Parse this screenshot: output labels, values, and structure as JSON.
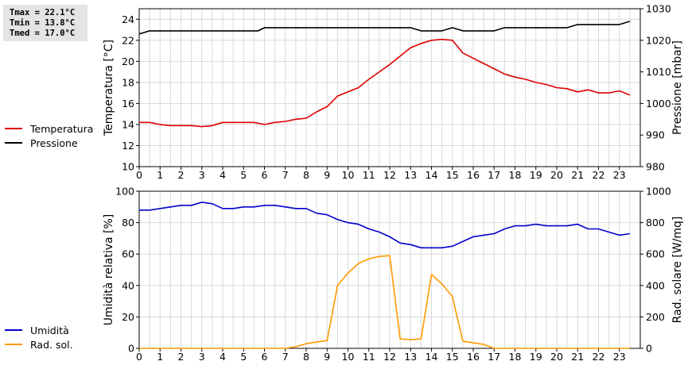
{
  "stats": {
    "tmax": "Tmax = 22.1°C",
    "tmin": "Tmin = 13.8°C",
    "tmed": "Tmed = 17.0°C"
  },
  "legend_top": [
    {
      "label": "Temperatura",
      "color": "#dd0000"
    },
    {
      "label": "Pressione",
      "color": "#000000"
    }
  ],
  "legend_bottom": [
    {
      "label": "Umidità",
      "color": "#0000cc"
    },
    {
      "label": "Rad. sol.",
      "color": "#ff9900"
    }
  ],
  "chart_data": [
    {
      "type": "line",
      "xlim": [
        0,
        24
      ],
      "xticks": [
        0,
        1,
        2,
        3,
        4,
        5,
        6,
        7,
        8,
        9,
        10,
        11,
        12,
        13,
        14,
        15,
        16,
        17,
        18,
        19,
        20,
        21,
        22,
        23
      ],
      "ylabel": "Temperatura [°C]",
      "ylim": [
        10,
        25
      ],
      "yticks": [
        10,
        12,
        14,
        16,
        18,
        20,
        22,
        24
      ],
      "y2label": "Pressione [mbar]",
      "y2lim": [
        980,
        1030
      ],
      "y2ticks": [
        980,
        990,
        1000,
        1010,
        1020,
        1030
      ],
      "grid": true,
      "series": [
        {
          "name": "Temperatura",
          "axis": "left",
          "color": "#dd0000",
          "x": [
            0,
            0.5,
            1,
            1.5,
            2,
            2.5,
            3,
            3.5,
            4,
            4.5,
            5,
            5.5,
            6,
            6.5,
            7,
            7.5,
            8,
            8.5,
            9,
            9.5,
            10,
            10.5,
            11,
            11.5,
            12,
            12.5,
            13,
            13.5,
            14,
            14.5,
            15,
            15.5,
            16,
            16.5,
            17,
            17.5,
            18,
            18.5,
            19,
            19.5,
            20,
            20.5,
            21,
            21.5,
            22,
            22.5,
            23,
            23.5
          ],
          "y": [
            14.2,
            14.2,
            14.0,
            13.9,
            13.9,
            13.9,
            13.8,
            13.9,
            14.2,
            14.2,
            14.2,
            14.2,
            14.0,
            14.2,
            14.3,
            14.5,
            14.6,
            15.2,
            15.7,
            16.7,
            17.1,
            17.5,
            18.3,
            19.0,
            19.7,
            20.5,
            21.3,
            21.7,
            22.0,
            22.1,
            22.0,
            20.8,
            20.3,
            19.8,
            19.3,
            18.8,
            18.5,
            18.3,
            18.0,
            17.8,
            17.5,
            17.4,
            17.1,
            17.3,
            17.0,
            17.0,
            17.2,
            16.8
          ]
        },
        {
          "name": "Pressione",
          "axis": "right",
          "color": "#000000",
          "x": [
            0,
            0.5,
            1,
            2,
            3,
            4,
            5,
            5.7,
            6,
            7,
            8,
            9,
            10,
            11,
            12,
            13,
            13.5,
            14,
            14.5,
            15,
            15.5,
            16,
            17,
            17.5,
            18,
            19,
            20,
            20.5,
            21,
            22,
            23,
            23.5
          ],
          "y": [
            1022,
            1023,
            1023,
            1023,
            1023,
            1023,
            1023,
            1023,
            1024,
            1024,
            1024,
            1024,
            1024,
            1024,
            1024,
            1024,
            1023,
            1023,
            1023,
            1024,
            1023,
            1023,
            1023,
            1024,
            1024,
            1024,
            1024,
            1024,
            1025,
            1025,
            1025,
            1026
          ]
        }
      ]
    },
    {
      "type": "line",
      "xlim": [
        0,
        24
      ],
      "xticks": [
        0,
        1,
        2,
        3,
        4,
        5,
        6,
        7,
        8,
        9,
        10,
        11,
        12,
        13,
        14,
        15,
        16,
        17,
        18,
        19,
        20,
        21,
        22,
        23
      ],
      "ylabel": "Umidità relativa [%]",
      "ylim": [
        0,
        100
      ],
      "yticks": [
        0,
        20,
        40,
        60,
        80,
        100
      ],
      "y2label": "Rad. solare [W/mq]",
      "y2lim": [
        0,
        1000
      ],
      "y2ticks": [
        0,
        200,
        400,
        600,
        800,
        1000
      ],
      "grid": true,
      "series": [
        {
          "name": "Umidità",
          "axis": "left",
          "color": "#0000cc",
          "x": [
            0,
            0.5,
            1,
            1.5,
            2,
            2.5,
            3,
            3.5,
            4,
            4.5,
            5,
            5.5,
            6,
            6.5,
            7,
            7.5,
            8,
            8.5,
            9,
            9.5,
            10,
            10.5,
            11,
            11.5,
            12,
            12.5,
            13,
            13.5,
            14,
            14.5,
            15,
            15.5,
            16,
            16.5,
            17,
            17.5,
            18,
            18.5,
            19,
            19.5,
            20,
            20.5,
            21,
            21.5,
            22,
            22.5,
            23,
            23.5
          ],
          "y": [
            88,
            88,
            89,
            90,
            91,
            91,
            93,
            92,
            89,
            89,
            90,
            90,
            91,
            91,
            90,
            89,
            89,
            86,
            85,
            82,
            80,
            79,
            76,
            74,
            71,
            67,
            66,
            64,
            64,
            64,
            65,
            68,
            71,
            72,
            73,
            76,
            78,
            78,
            79,
            78,
            78,
            78,
            79,
            76,
            76,
            74,
            72,
            73
          ]
        },
        {
          "name": "Rad. sol.",
          "axis": "right",
          "color": "#ff9900",
          "x": [
            0,
            1,
            2,
            3,
            4,
            5,
            6,
            7,
            7.5,
            8,
            8.5,
            9,
            9.5,
            10,
            10.5,
            11,
            11.5,
            12,
            12.5,
            13,
            13.5,
            14,
            14.5,
            15,
            15.5,
            16,
            16.5,
            17,
            18,
            19,
            20,
            21,
            22,
            23,
            23.5
          ],
          "y": [
            0,
            0,
            0,
            0,
            0,
            0,
            0,
            0,
            10,
            30,
            40,
            50,
            400,
            480,
            540,
            570,
            585,
            590,
            60,
            55,
            60,
            470,
            410,
            330,
            45,
            35,
            25,
            0,
            0,
            0,
            0,
            0,
            0,
            0,
            0
          ]
        }
      ]
    }
  ]
}
